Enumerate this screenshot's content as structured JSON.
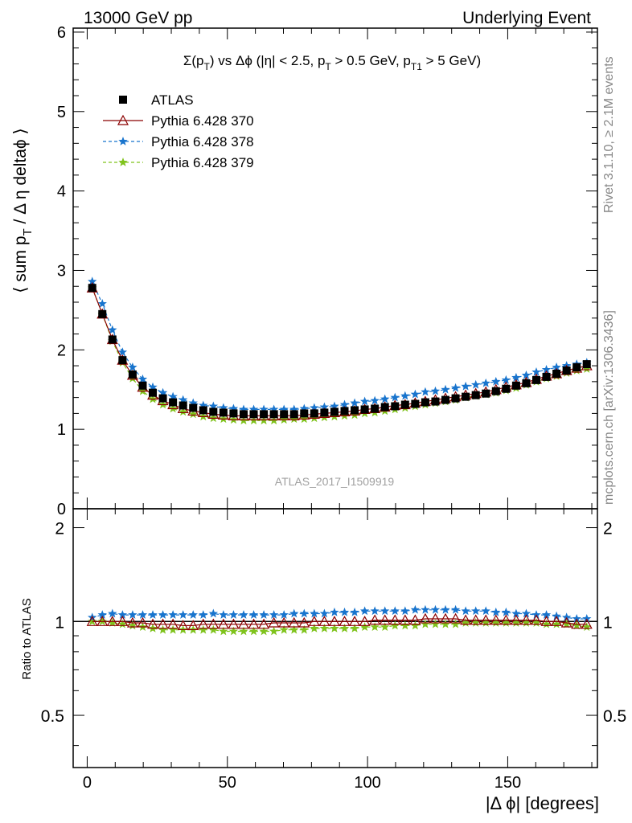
{
  "header": {
    "energy_label": "13000 GeV pp",
    "process_label": "Underlying Event"
  },
  "side_labels": {
    "rivet": "Rivet 3.1.10, ≥ 2.1M events",
    "mcplots": "mcplots.cern.ch [arXiv:1306.3436]"
  },
  "analysis_watermark": "ATLAS_2017_I1509919",
  "chart_data": [
    {
      "type": "scatter",
      "panel": "main",
      "title": "Σ(pT) vs Δφ (|η| < 2.5, pT > 0.5 GeV, pT1 > 5 GeV)",
      "title_parts": {
        "prefix": "Σ(p",
        "sub1": "T",
        "mid1": ") vs Δϕ (|η| < 2.5, p",
        "sub2": "T",
        "mid2": " > 0.5 GeV, p",
        "sub3": "T1",
        "suffix": " > 5 GeV)"
      },
      "ylabel_parts": {
        "pre": "⟨ sum p",
        "sub": "T",
        "post": " / Δ η deltaϕ ⟩"
      },
      "xlim": [
        -5,
        182
      ],
      "ylim": [
        0,
        6.05
      ],
      "yticks": [
        0,
        1,
        2,
        3,
        4,
        5,
        6
      ],
      "legend_position": "top-left",
      "x": [
        1.8,
        5.4,
        9,
        12.6,
        16.2,
        19.8,
        23.4,
        27,
        30.6,
        34.2,
        37.8,
        41.4,
        45,
        48.6,
        52.2,
        55.8,
        59.4,
        63,
        66.6,
        70.2,
        73.8,
        77.4,
        81,
        84.6,
        88.2,
        91.8,
        95.4,
        99,
        102.6,
        106.2,
        109.8,
        113.4,
        117,
        120.6,
        124.2,
        127.8,
        131.4,
        135,
        138.6,
        142.2,
        145.8,
        149.4,
        153,
        156.6,
        160.2,
        163.8,
        167.4,
        171,
        174.6,
        178.2
      ],
      "series": [
        {
          "name": "ATLAS",
          "color": "#000000",
          "marker": "square",
          "values": [
            2.78,
            2.45,
            2.13,
            1.87,
            1.69,
            1.55,
            1.46,
            1.39,
            1.34,
            1.3,
            1.27,
            1.24,
            1.22,
            1.21,
            1.2,
            1.19,
            1.19,
            1.19,
            1.19,
            1.19,
            1.19,
            1.2,
            1.2,
            1.21,
            1.22,
            1.23,
            1.24,
            1.25,
            1.26,
            1.28,
            1.29,
            1.31,
            1.32,
            1.34,
            1.35,
            1.37,
            1.39,
            1.41,
            1.43,
            1.45,
            1.48,
            1.51,
            1.55,
            1.58,
            1.62,
            1.66,
            1.7,
            1.74,
            1.78,
            1.82
          ]
        },
        {
          "name": "Pythia 6.428 370",
          "color": "#8b0000",
          "marker": "open-triangle",
          "values": [
            2.78,
            2.45,
            2.13,
            1.87,
            1.68,
            1.53,
            1.43,
            1.36,
            1.31,
            1.26,
            1.23,
            1.21,
            1.19,
            1.18,
            1.17,
            1.17,
            1.17,
            1.17,
            1.17,
            1.17,
            1.17,
            1.18,
            1.19,
            1.2,
            1.21,
            1.22,
            1.23,
            1.25,
            1.26,
            1.28,
            1.3,
            1.31,
            1.33,
            1.35,
            1.37,
            1.39,
            1.41,
            1.43,
            1.45,
            1.47,
            1.5,
            1.53,
            1.56,
            1.59,
            1.63,
            1.67,
            1.7,
            1.74,
            1.77,
            1.8
          ]
        },
        {
          "name": "Pythia 6.428 378",
          "color": "#1874cd",
          "marker": "star",
          "values": [
            2.86,
            2.58,
            2.25,
            1.97,
            1.78,
            1.63,
            1.53,
            1.46,
            1.41,
            1.37,
            1.33,
            1.3,
            1.29,
            1.27,
            1.26,
            1.25,
            1.25,
            1.25,
            1.25,
            1.25,
            1.25,
            1.26,
            1.27,
            1.28,
            1.29,
            1.31,
            1.33,
            1.35,
            1.36,
            1.38,
            1.4,
            1.42,
            1.44,
            1.47,
            1.48,
            1.5,
            1.52,
            1.54,
            1.56,
            1.58,
            1.6,
            1.62,
            1.65,
            1.68,
            1.72,
            1.75,
            1.78,
            1.8,
            1.82,
            1.84
          ]
        },
        {
          "name": "Pythia 6.428 379",
          "color": "#7fc31c",
          "marker": "star",
          "values": [
            2.78,
            2.45,
            2.11,
            1.84,
            1.64,
            1.48,
            1.38,
            1.31,
            1.26,
            1.22,
            1.19,
            1.16,
            1.14,
            1.13,
            1.12,
            1.11,
            1.11,
            1.11,
            1.11,
            1.12,
            1.13,
            1.13,
            1.14,
            1.15,
            1.16,
            1.17,
            1.18,
            1.2,
            1.21,
            1.23,
            1.25,
            1.27,
            1.29,
            1.31,
            1.33,
            1.35,
            1.37,
            1.4,
            1.42,
            1.44,
            1.46,
            1.49,
            1.52,
            1.56,
            1.6,
            1.64,
            1.67,
            1.71,
            1.74,
            1.76
          ]
        }
      ]
    },
    {
      "type": "scatter",
      "panel": "ratio",
      "ylabel": "Ratio to ATLAS",
      "xlabel": "|Δ ϕ| [degrees]",
      "xlim": [
        -5,
        182
      ],
      "ylim": [
        0.34,
        2.3
      ],
      "yticks": [
        0.5,
        1,
        2
      ],
      "xticks": [
        0,
        50,
        100,
        150
      ],
      "series": [
        {
          "name": "Pythia 6.428 370",
          "color": "#8b0000",
          "marker": "open-triangle",
          "values": [
            1.0,
            1.0,
            1.0,
            1.0,
            0.99,
            0.99,
            0.98,
            0.98,
            0.98,
            0.97,
            0.97,
            0.98,
            0.98,
            0.98,
            0.98,
            0.98,
            0.98,
            0.98,
            0.99,
            0.99,
            0.99,
            0.99,
            1.0,
            1.0,
            1.0,
            1.0,
            1.0,
            1.0,
            1.01,
            1.01,
            1.01,
            1.01,
            1.01,
            1.02,
            1.02,
            1.02,
            1.02,
            1.01,
            1.01,
            1.01,
            1.01,
            1.01,
            1.01,
            1.01,
            1.01,
            1.0,
            1.0,
            0.99,
            0.98,
            0.98
          ]
        },
        {
          "name": "Pythia 6.428 378",
          "color": "#1874cd",
          "marker": "star",
          "values": [
            1.03,
            1.05,
            1.06,
            1.05,
            1.05,
            1.05,
            1.05,
            1.05,
            1.05,
            1.05,
            1.05,
            1.05,
            1.06,
            1.05,
            1.05,
            1.05,
            1.05,
            1.05,
            1.05,
            1.05,
            1.06,
            1.06,
            1.06,
            1.06,
            1.07,
            1.07,
            1.07,
            1.08,
            1.08,
            1.08,
            1.08,
            1.08,
            1.09,
            1.09,
            1.09,
            1.09,
            1.09,
            1.08,
            1.08,
            1.08,
            1.07,
            1.07,
            1.06,
            1.06,
            1.05,
            1.05,
            1.04,
            1.03,
            1.02,
            1.02
          ]
        },
        {
          "name": "Pythia 6.428 379",
          "color": "#7fc31c",
          "marker": "star",
          "values": [
            1.0,
            1.0,
            0.99,
            0.98,
            0.97,
            0.96,
            0.95,
            0.94,
            0.94,
            0.94,
            0.94,
            0.94,
            0.94,
            0.93,
            0.93,
            0.93,
            0.93,
            0.93,
            0.93,
            0.94,
            0.94,
            0.94,
            0.95,
            0.95,
            0.95,
            0.95,
            0.95,
            0.96,
            0.96,
            0.96,
            0.97,
            0.97,
            0.97,
            0.98,
            0.98,
            0.98,
            0.98,
            0.99,
            0.99,
            0.99,
            0.99,
            0.99,
            0.99,
            0.99,
            0.99,
            0.98,
            0.98,
            0.98,
            0.97,
            0.96
          ]
        }
      ]
    }
  ]
}
